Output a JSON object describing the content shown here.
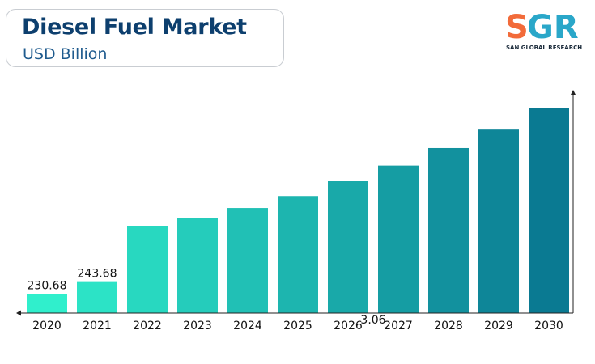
{
  "header": {
    "title": "Diesel Fuel Market",
    "subtitle": "USD Billion"
  },
  "logo": {
    "letters": "SGR",
    "tagline": "SAN GLOBAL RESEARCH",
    "colors": {
      "s": "#f26b3a",
      "gr": "#2aa7c9",
      "tagline": "#1a2a3a"
    }
  },
  "chart_data": {
    "type": "bar",
    "categories": [
      "2020",
      "2021",
      "2022",
      "2023",
      "2024",
      "2025",
      "2026",
      "2027",
      "2028",
      "2029",
      "2030"
    ],
    "values": [
      230.68,
      243.68,
      304,
      313,
      324,
      337,
      353,
      370,
      389,
      409,
      432
    ],
    "data_labels": [
      "230.68",
      "243.68",
      "",
      "",
      "",
      "",
      "",
      "",
      "",
      "",
      ""
    ],
    "annotation": "3.06",
    "title": "Diesel Fuel Market",
    "subtitle": "USD Billion",
    "ylim": [
      210,
      446
    ],
    "axis_arrows": true,
    "grid": false,
    "legend": "none",
    "gradient_colors": [
      "#30efcc",
      "#0a7a92"
    ]
  }
}
